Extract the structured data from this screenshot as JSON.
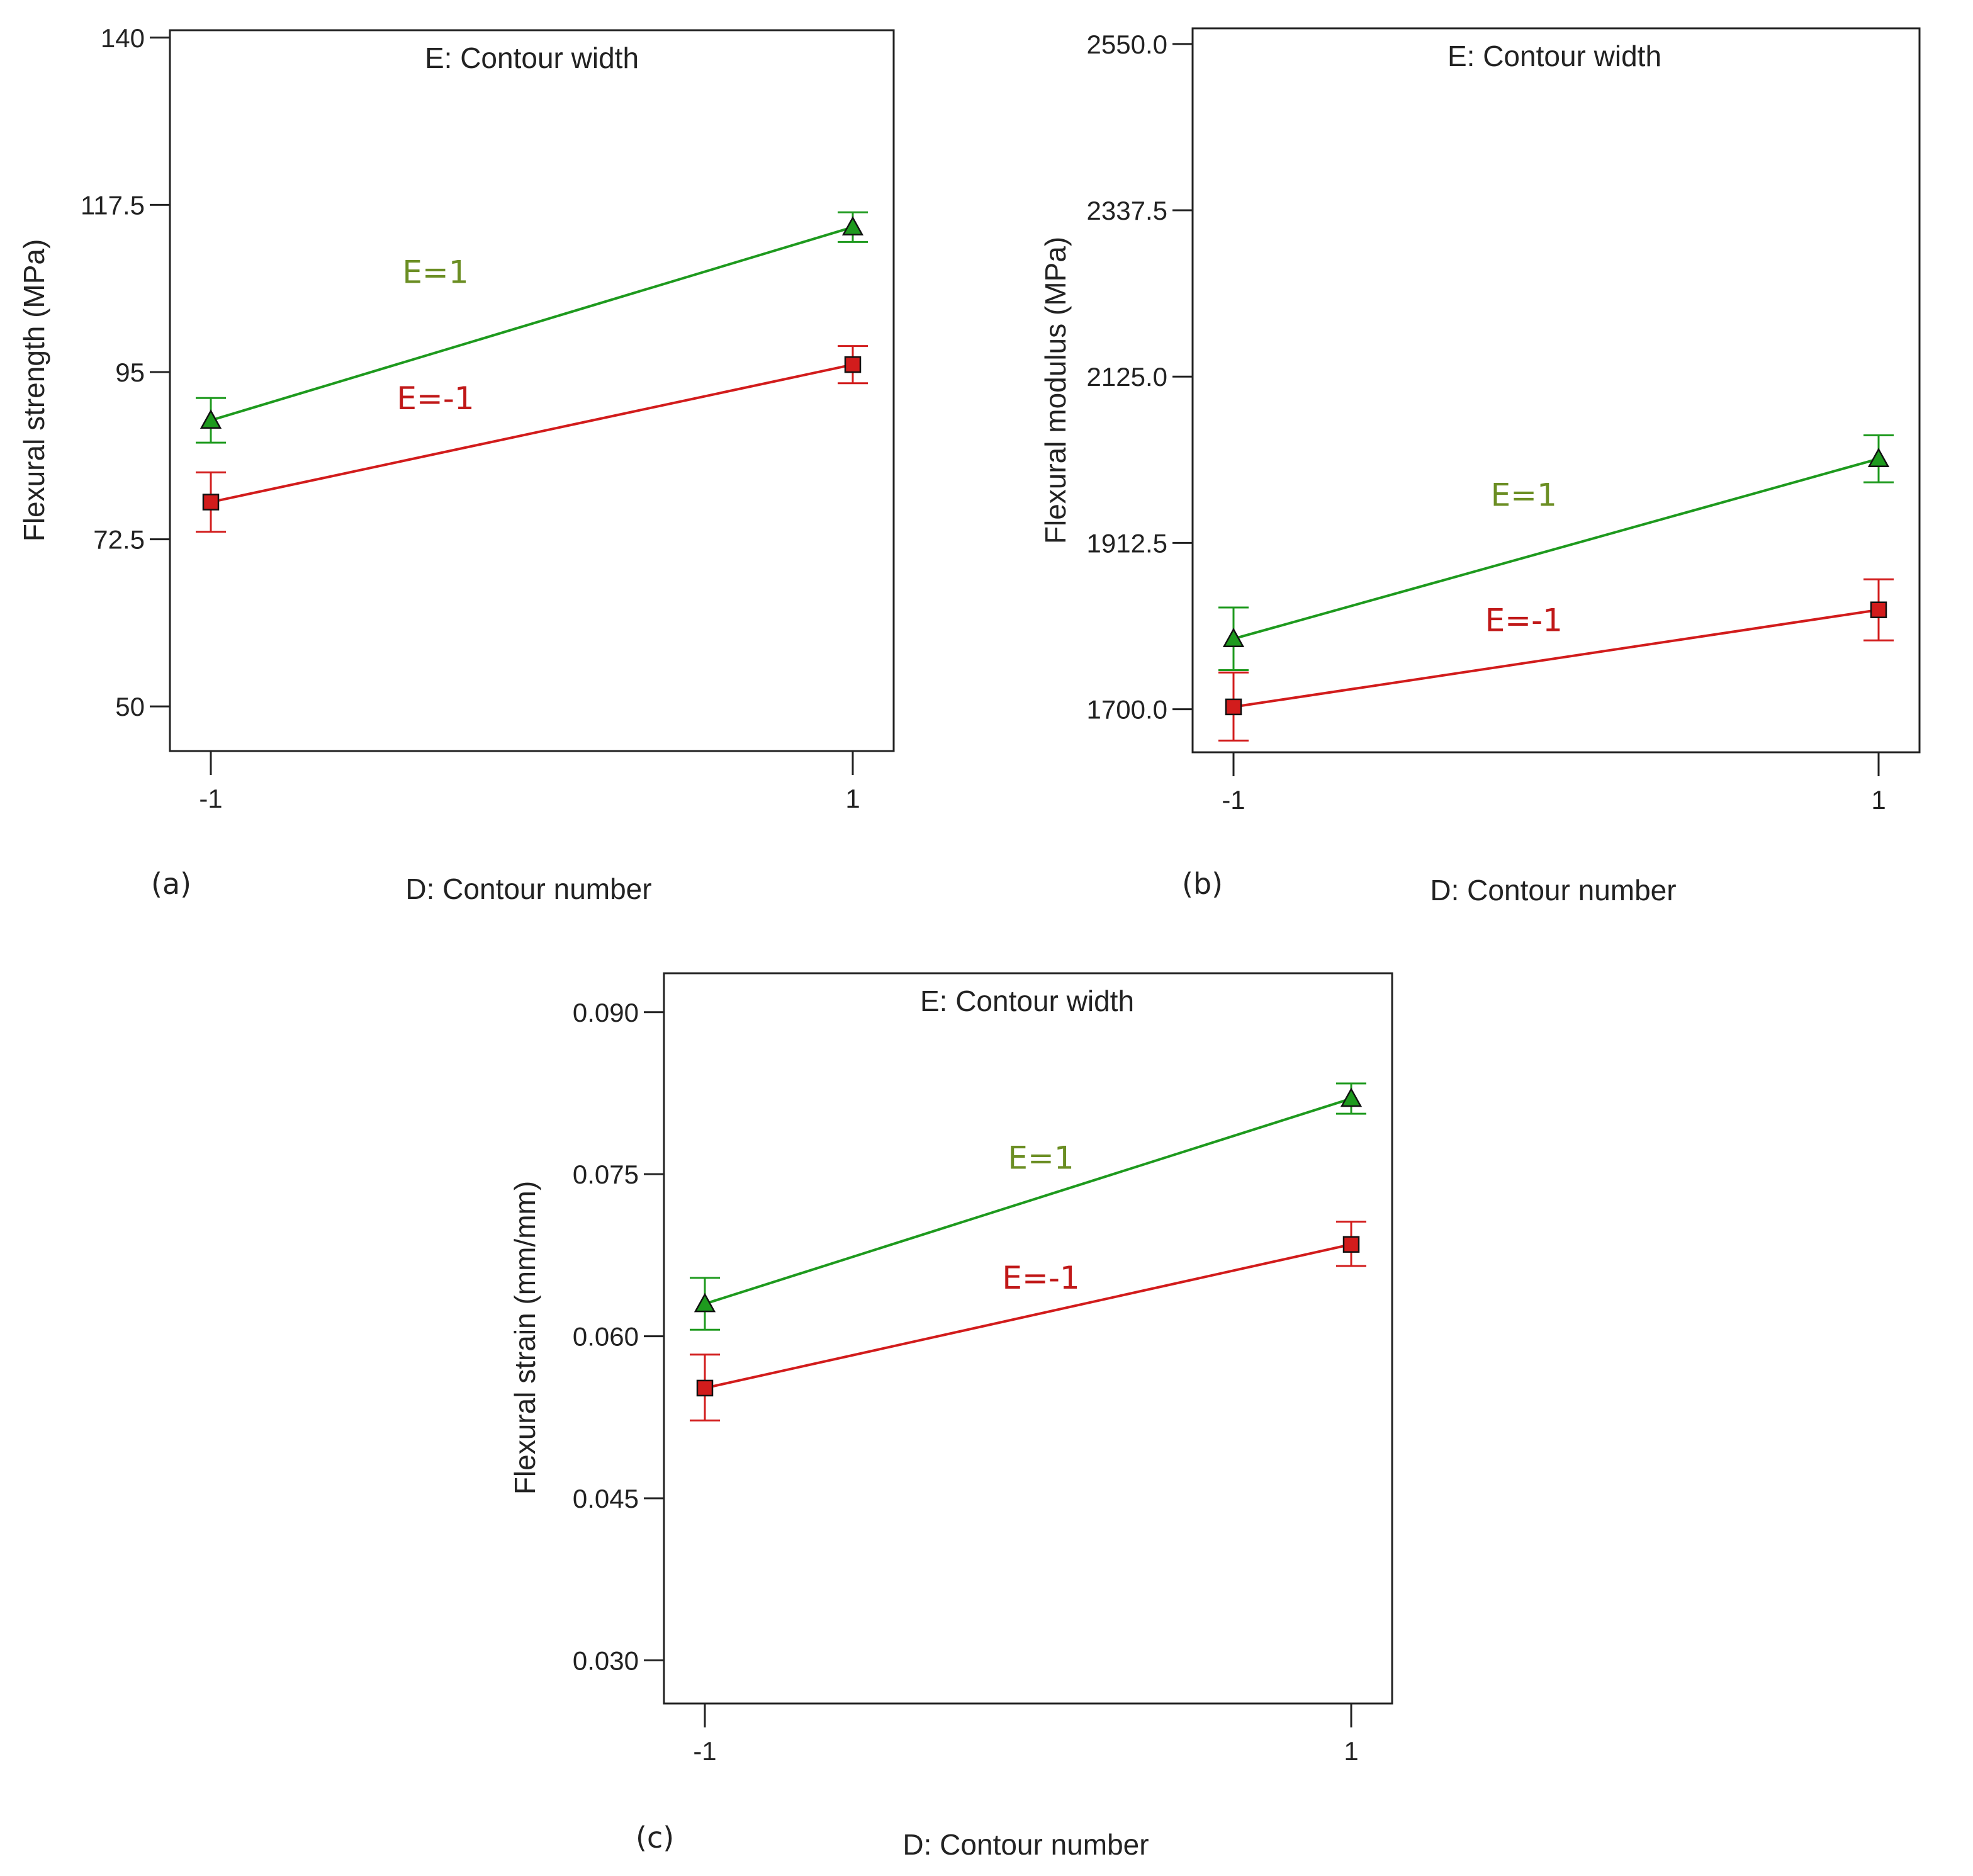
{
  "figure": {
    "colors": {
      "green": "#1e9a1e",
      "red": "#d21c1c",
      "green_label": "#6b8e23",
      "red_label": "#c01818",
      "frame": "#222222"
    }
  },
  "chart_data": [
    {
      "id": "a",
      "type": "line",
      "panel_label": "(a)",
      "title": "E: Contour width",
      "xlabel": "D: Contour number",
      "ylabel": "Flexural strength (MPa)",
      "categories": [
        "-1",
        "1"
      ],
      "x": [
        -1,
        1
      ],
      "ylim": [
        44,
        141
      ],
      "yticks": [
        50,
        72.5,
        95,
        117.5,
        140
      ],
      "ytick_labels": [
        "50",
        "72.5",
        "95",
        "117.5",
        "140"
      ],
      "series": [
        {
          "name": "E=1",
          "marker": "triangle",
          "color": "#1e9a1e",
          "label_color": "#6b8e23",
          "values": [
            88.5,
            114.5
          ],
          "err_low": [
            85.5,
            112.5
          ],
          "err_high": [
            91.5,
            116.5
          ],
          "label_at": [
            -0.3,
            107
          ]
        },
        {
          "name": "E=-1",
          "marker": "square",
          "color": "#d21c1c",
          "label_color": "#c01818",
          "values": [
            77.5,
            96
          ],
          "err_low": [
            73.5,
            93.5
          ],
          "err_high": [
            81.5,
            98.5
          ],
          "label_at": [
            -0.3,
            90
          ]
        }
      ]
    },
    {
      "id": "b",
      "type": "line",
      "panel_label": "(b)",
      "title": "E: Contour width",
      "xlabel": "D: Contour number",
      "ylabel": "Flexural modulus (MPa)",
      "categories": [
        "-1",
        "1"
      ],
      "x": [
        -1,
        1
      ],
      "ylim": [
        1645,
        2570
      ],
      "yticks": [
        1700,
        1912.5,
        2125,
        2337.5,
        2550
      ],
      "ytick_labels": [
        "1700.0",
        "1912.5",
        "2125.0",
        "2337.5",
        "2550.0"
      ],
      "series": [
        {
          "name": "E=1",
          "marker": "triangle",
          "color": "#1e9a1e",
          "label_color": "#6b8e23",
          "values": [
            1790,
            2020
          ],
          "err_low": [
            1750,
            1990
          ],
          "err_high": [
            1830,
            2050
          ],
          "label_at": [
            -0.1,
            1960
          ]
        },
        {
          "name": "E=-1",
          "marker": "square",
          "color": "#d21c1c",
          "label_color": "#c01818",
          "values": [
            1703,
            1827
          ],
          "err_low": [
            1660,
            1788
          ],
          "err_high": [
            1747,
            1866
          ],
          "label_at": [
            -0.1,
            1800
          ]
        }
      ]
    },
    {
      "id": "c",
      "type": "line",
      "panel_label": "(c)",
      "title": "E: Contour width",
      "xlabel": "D: Contour number",
      "ylabel": "Flexural strain (mm/mm)",
      "categories": [
        "-1",
        "1"
      ],
      "x": [
        -1,
        1
      ],
      "ylim": [
        0.026,
        0.0936
      ],
      "yticks": [
        0.03,
        0.045,
        0.06,
        0.075,
        0.09
      ],
      "ytick_labels": [
        "0.030",
        "0.045",
        "0.060",
        "0.075",
        "0.090"
      ],
      "series": [
        {
          "name": "E=1",
          "marker": "triangle",
          "color": "#1e9a1e",
          "label_color": "#6b8e23",
          "values": [
            0.063,
            0.082
          ],
          "err_low": [
            0.0606,
            0.0806
          ],
          "err_high": [
            0.0654,
            0.0834
          ],
          "label_at": [
            0.04,
            0.0755
          ]
        },
        {
          "name": "E=-1",
          "marker": "square",
          "color": "#d21c1c",
          "label_color": "#c01818",
          "values": [
            0.0552,
            0.0685
          ],
          "err_low": [
            0.0522,
            0.0665
          ],
          "err_high": [
            0.0583,
            0.0706
          ],
          "label_at": [
            0.04,
            0.0644
          ]
        }
      ]
    }
  ]
}
